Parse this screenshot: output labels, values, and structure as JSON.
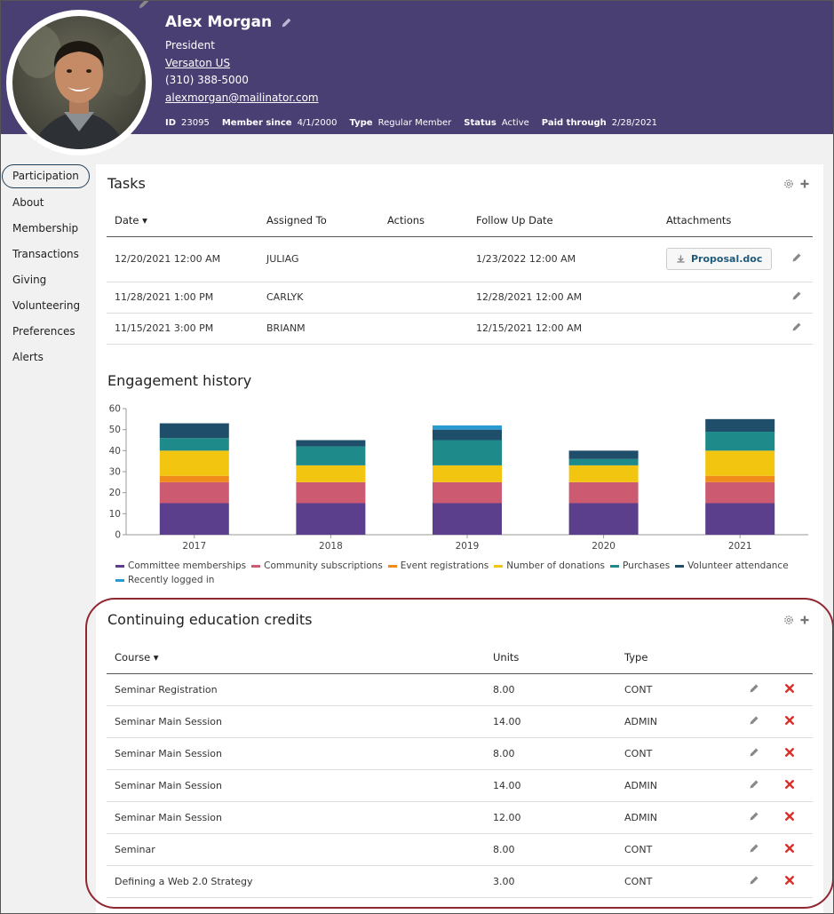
{
  "profile": {
    "name": "Alex Morgan",
    "title": "President",
    "company": "Versaton US",
    "phone": "(310) 388-5000",
    "email": "alexmorgan@mailinator.com",
    "meta": [
      {
        "key": "ID",
        "value": "23095"
      },
      {
        "key": "Member since",
        "value": "4/1/2000"
      },
      {
        "key": "Type",
        "value": "Regular Member"
      },
      {
        "key": "Status",
        "value": "Active"
      },
      {
        "key": "Paid through",
        "value": "2/28/2021"
      }
    ]
  },
  "sidebar": {
    "items": [
      {
        "label": "Participation",
        "active": true
      },
      {
        "label": "About"
      },
      {
        "label": "Membership"
      },
      {
        "label": "Transactions"
      },
      {
        "label": "Giving"
      },
      {
        "label": "Volunteering"
      },
      {
        "label": "Preferences"
      },
      {
        "label": "Alerts"
      }
    ]
  },
  "tasks": {
    "title": "Tasks",
    "columns": [
      "Date ▾",
      "Assigned To",
      "Actions",
      "Follow Up Date",
      "Attachments"
    ],
    "rows": [
      {
        "date": "12/20/2021 12:00 AM",
        "assigned": "JULIAG",
        "actions": "",
        "followup": "1/23/2022 12:00 AM",
        "attachment": "Proposal.doc"
      },
      {
        "date": "11/28/2021 1:00 PM",
        "assigned": "CARLYK",
        "actions": "",
        "followup": "12/28/2021 12:00 AM",
        "attachment": ""
      },
      {
        "date": "11/15/2021 3:00 PM",
        "assigned": "BRIANM",
        "actions": "",
        "followup": "12/15/2021 12:00 AM",
        "attachment": ""
      }
    ]
  },
  "engagement": {
    "title": "Engagement history"
  },
  "chart_data": {
    "type": "bar",
    "stacked": true,
    "categories": [
      "2017",
      "2018",
      "2019",
      "2020",
      "2021"
    ],
    "ylim": [
      0,
      60
    ],
    "yticks": [
      0,
      10,
      20,
      30,
      40,
      50,
      60
    ],
    "series": [
      {
        "name": "Committee memberships",
        "color": "#5b3f8c",
        "values": [
          15,
          15,
          15,
          15,
          15
        ]
      },
      {
        "name": "Community subscriptions",
        "color": "#cc5a71",
        "values": [
          10,
          10,
          10,
          10,
          10
        ]
      },
      {
        "name": "Event registrations",
        "color": "#f08c1a",
        "values": [
          3,
          0,
          0,
          0,
          3
        ]
      },
      {
        "name": "Number of donations",
        "color": "#f2c511",
        "values": [
          12,
          8,
          8,
          8,
          12
        ]
      },
      {
        "name": "Purchases",
        "color": "#1f8a8a",
        "values": [
          6,
          9,
          12,
          3,
          9
        ]
      },
      {
        "name": "Volunteer attendance",
        "color": "#1f4e6b",
        "values": [
          7,
          3,
          5,
          4,
          6
        ]
      },
      {
        "name": "Recently logged in",
        "color": "#2a9bd1",
        "values": [
          0,
          0,
          2,
          0,
          0
        ]
      }
    ],
    "grid": false,
    "legend_position": "bottom"
  },
  "ce": {
    "title": "Continuing education credits",
    "columns": [
      "Course ▾",
      "Units",
      "Type"
    ],
    "rows": [
      {
        "course": "Seminar Registration",
        "units": "8.00",
        "type": "CONT"
      },
      {
        "course": "Seminar Main Session",
        "units": "14.00",
        "type": "ADMIN"
      },
      {
        "course": "Seminar Main Session",
        "units": "8.00",
        "type": "CONT"
      },
      {
        "course": "Seminar Main Session",
        "units": "14.00",
        "type": "ADMIN"
      },
      {
        "course": "Seminar Main Session",
        "units": "12.00",
        "type": "ADMIN"
      },
      {
        "course": "Seminar",
        "units": "8.00",
        "type": "CONT"
      },
      {
        "course": "Defining a Web 2.0 Strategy",
        "units": "3.00",
        "type": "CONT"
      }
    ]
  },
  "icons": {
    "edit": "pencil-icon",
    "delete": "delete-x-icon",
    "settings": "gear-icon",
    "add": "plus-icon",
    "download": "download-icon"
  },
  "colors": {
    "header_bg": "#4a3f72",
    "highlight_ring": "#8f2630",
    "attachment_text": "#1f5b78",
    "delete_red": "#d9302c"
  }
}
